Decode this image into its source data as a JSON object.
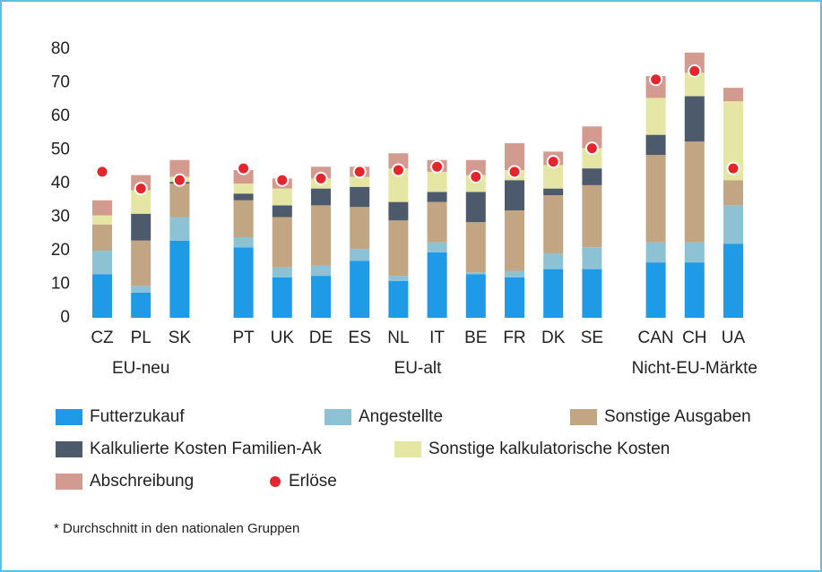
{
  "chart_data": {
    "type": "bar",
    "categories": [
      "CZ",
      "PL",
      "SK",
      "PT",
      "UK",
      "DE",
      "ES",
      "NL",
      "IT",
      "BE",
      "FR",
      "DK",
      "SE",
      "CAN",
      "CH",
      "UA"
    ],
    "groups": [
      {
        "name": "EU-neu",
        "size": 3
      },
      {
        "name": "EU-alt",
        "size": 10
      },
      {
        "name": "Nicht-EU-Märkte",
        "size": 3
      }
    ],
    "series": [
      {
        "name": "Futterzukauf",
        "color": "#1f9ae6",
        "values": [
          13,
          7.5,
          23,
          21,
          12,
          12.5,
          17,
          11,
          19.5,
          13,
          12,
          14.5,
          14.5,
          16.5,
          16.5,
          22
        ]
      },
      {
        "name": "Angestellte",
        "color": "#8dc1d4",
        "values": [
          7,
          2,
          7,
          3,
          3,
          3,
          3.5,
          1.5,
          3,
          0.5,
          2,
          4.5,
          6.5,
          6,
          6,
          11.5
        ]
      },
      {
        "name": "Sonstige Ausgaben",
        "color": "#c2a583",
        "values": [
          7.8,
          13.5,
          10,
          11,
          15,
          18,
          12.5,
          16.5,
          12,
          15,
          18,
          17.5,
          18.5,
          26,
          30,
          7.5
        ]
      },
      {
        "name": "Kalkulierte Kosten Familien-Ak",
        "color": "#4d5a6c",
        "values": [
          0,
          8,
          0.5,
          2,
          3.5,
          5,
          6,
          5.5,
          3,
          9,
          9,
          2,
          5,
          6,
          13.5,
          0
        ]
      },
      {
        "name": "Sonstige kalkulatorische Kosten",
        "color": "#e5e6a3",
        "values": [
          2.7,
          7,
          1.5,
          3,
          5,
          3,
          3,
          10,
          6,
          5,
          3,
          7,
          6,
          11,
          7,
          23.5
        ]
      },
      {
        "name": "Abschreibung",
        "color": "#d39b8f",
        "values": [
          4.5,
          4.5,
          5,
          4,
          3,
          3.5,
          3,
          4.5,
          3.5,
          4.5,
          8,
          4,
          6.5,
          6.5,
          6,
          4
        ]
      },
      {
        "name": "Erlöse",
        "type": "scatter",
        "color": "#e3262b",
        "values": [
          43.5,
          38.5,
          41,
          44.5,
          41,
          41.5,
          43.5,
          44,
          45,
          42,
          43.5,
          46.5,
          50.5,
          71,
          73.5,
          44.5
        ]
      }
    ],
    "ylim": [
      0,
      80
    ],
    "yticks": [
      0,
      10,
      20,
      30,
      40,
      50,
      60,
      70,
      80
    ],
    "grid": false,
    "footnote": "* Durchschnitt in den nationalen Gruppen"
  }
}
